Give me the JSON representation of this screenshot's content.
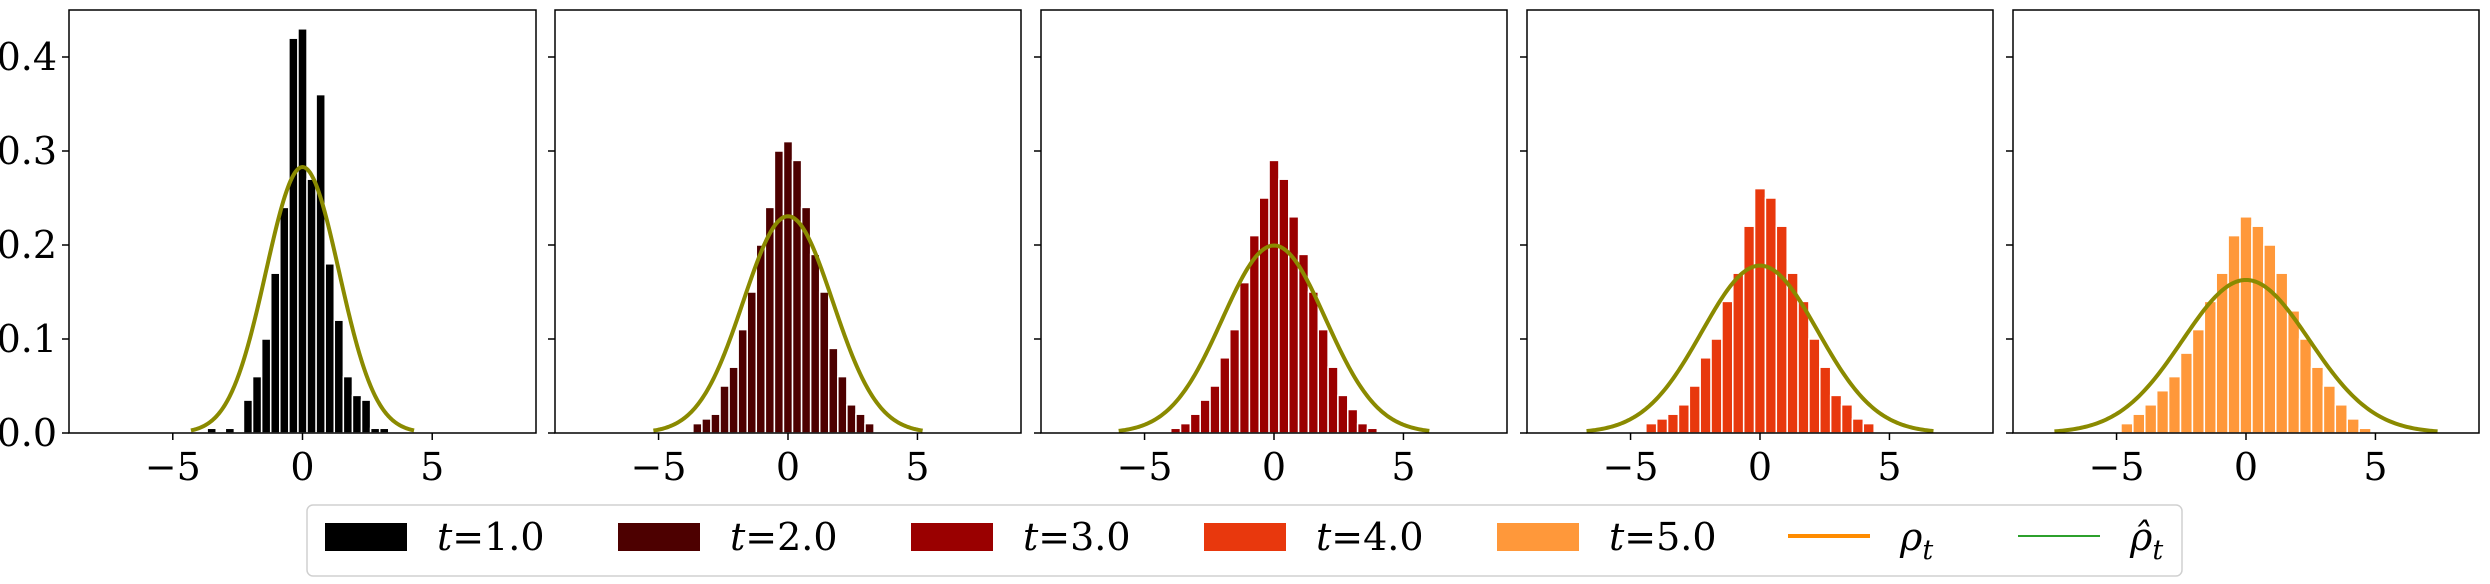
{
  "chart_data": [
    {
      "type": "bar",
      "series_name": "t=1.0",
      "bar_color": "#000000",
      "xlim": [
        -9,
        9
      ],
      "ylim": [
        0,
        0.45
      ],
      "xticks": [
        -5,
        0,
        5
      ],
      "yticks": [
        0.0,
        0.1,
        0.2,
        0.3,
        0.4
      ],
      "xtick_labels": [
        "−5",
        "0",
        "5"
      ],
      "ytick_labels": [
        "0.0",
        "0.1",
        "0.2",
        "0.3",
        "0.4"
      ],
      "bin_width": 0.35,
      "bins": [
        {
          "x": -3.5,
          "y": 0.005
        },
        {
          "x": -2.8,
          "y": 0.005
        },
        {
          "x": -2.1,
          "y": 0.035
        },
        {
          "x": -1.75,
          "y": 0.06
        },
        {
          "x": -1.4,
          "y": 0.1
        },
        {
          "x": -1.05,
          "y": 0.17
        },
        {
          "x": -0.7,
          "y": 0.24
        },
        {
          "x": -0.35,
          "y": 0.42
        },
        {
          "x": 0.0,
          "y": 0.43
        },
        {
          "x": 0.35,
          "y": 0.27
        },
        {
          "x": 0.7,
          "y": 0.36
        },
        {
          "x": 1.05,
          "y": 0.18
        },
        {
          "x": 1.4,
          "y": 0.12
        },
        {
          "x": 1.75,
          "y": 0.06
        },
        {
          "x": 2.1,
          "y": 0.04
        },
        {
          "x": 2.45,
          "y": 0.035
        },
        {
          "x": 2.8,
          "y": 0.005
        },
        {
          "x": 3.15,
          "y": 0.005
        }
      ],
      "density_sigma": 1.41,
      "density_domain": [
        -4.3,
        4.3
      ]
    },
    {
      "type": "bar",
      "series_name": "t=2.0",
      "bar_color": "#4d0000",
      "xlim": [
        -9,
        9
      ],
      "ylim": [
        0,
        0.45
      ],
      "xticks": [
        -5,
        0,
        5
      ],
      "yticks": [
        0.0,
        0.1,
        0.2,
        0.3,
        0.4
      ],
      "xtick_labels": [
        "−5",
        "0",
        "5"
      ],
      "ytick_labels": [
        "0.0",
        "0.1",
        "0.2",
        "0.3",
        "0.4"
      ],
      "bin_width": 0.35,
      "bins": [
        {
          "x": -3.5,
          "y": 0.01
        },
        {
          "x": -3.15,
          "y": 0.015
        },
        {
          "x": -2.8,
          "y": 0.02
        },
        {
          "x": -2.45,
          "y": 0.05
        },
        {
          "x": -2.1,
          "y": 0.07
        },
        {
          "x": -1.75,
          "y": 0.11
        },
        {
          "x": -1.4,
          "y": 0.15
        },
        {
          "x": -1.05,
          "y": 0.2
        },
        {
          "x": -0.7,
          "y": 0.24
        },
        {
          "x": -0.35,
          "y": 0.3
        },
        {
          "x": 0.0,
          "y": 0.31
        },
        {
          "x": 0.35,
          "y": 0.29
        },
        {
          "x": 0.7,
          "y": 0.24
        },
        {
          "x": 1.05,
          "y": 0.19
        },
        {
          "x": 1.4,
          "y": 0.15
        },
        {
          "x": 1.75,
          "y": 0.09
        },
        {
          "x": 2.1,
          "y": 0.06
        },
        {
          "x": 2.45,
          "y": 0.03
        },
        {
          "x": 2.8,
          "y": 0.02
        },
        {
          "x": 3.15,
          "y": 0.01
        }
      ],
      "density_sigma": 1.73,
      "density_domain": [
        -5.2,
        5.2
      ]
    },
    {
      "type": "bar",
      "series_name": "t=3.0",
      "bar_color": "#9a0000",
      "xlim": [
        -9,
        9
      ],
      "ylim": [
        0,
        0.45
      ],
      "xticks": [
        -5,
        0,
        5
      ],
      "yticks": [
        0.0,
        0.1,
        0.2,
        0.3,
        0.4
      ],
      "xtick_labels": [
        "−5",
        "0",
        "5"
      ],
      "ytick_labels": [
        "0.0",
        "0.1",
        "0.2",
        "0.3",
        "0.4"
      ],
      "bin_width": 0.38,
      "bins": [
        {
          "x": -3.8,
          "y": 0.005
        },
        {
          "x": -3.42,
          "y": 0.01
        },
        {
          "x": -3.04,
          "y": 0.02
        },
        {
          "x": -2.66,
          "y": 0.035
        },
        {
          "x": -2.28,
          "y": 0.05
        },
        {
          "x": -1.9,
          "y": 0.08
        },
        {
          "x": -1.52,
          "y": 0.11
        },
        {
          "x": -1.14,
          "y": 0.16
        },
        {
          "x": -0.76,
          "y": 0.21
        },
        {
          "x": -0.38,
          "y": 0.25
        },
        {
          "x": 0.0,
          "y": 0.29
        },
        {
          "x": 0.38,
          "y": 0.27
        },
        {
          "x": 0.76,
          "y": 0.23
        },
        {
          "x": 1.14,
          "y": 0.19
        },
        {
          "x": 1.52,
          "y": 0.15
        },
        {
          "x": 1.9,
          "y": 0.11
        },
        {
          "x": 2.28,
          "y": 0.07
        },
        {
          "x": 2.66,
          "y": 0.04
        },
        {
          "x": 3.04,
          "y": 0.025
        },
        {
          "x": 3.42,
          "y": 0.01
        },
        {
          "x": 3.8,
          "y": 0.005
        }
      ],
      "density_sigma": 2.0,
      "density_domain": [
        -6,
        6
      ]
    },
    {
      "type": "bar",
      "series_name": "t=4.0",
      "bar_color": "#e8380d",
      "xlim": [
        -9,
        9
      ],
      "ylim": [
        0,
        0.45
      ],
      "xticks": [
        -5,
        0,
        5
      ],
      "yticks": [
        0.0,
        0.1,
        0.2,
        0.3,
        0.4
      ],
      "xtick_labels": [
        "−5",
        "0",
        "5"
      ],
      "ytick_labels": [
        "0.0",
        "0.1",
        "0.2",
        "0.3",
        "0.4"
      ],
      "bin_width": 0.42,
      "bins": [
        {
          "x": -4.2,
          "y": 0.01
        },
        {
          "x": -3.78,
          "y": 0.015
        },
        {
          "x": -3.36,
          "y": 0.02
        },
        {
          "x": -2.94,
          "y": 0.03
        },
        {
          "x": -2.52,
          "y": 0.05
        },
        {
          "x": -2.1,
          "y": 0.08
        },
        {
          "x": -1.68,
          "y": 0.1
        },
        {
          "x": -1.26,
          "y": 0.14
        },
        {
          "x": -0.84,
          "y": 0.17
        },
        {
          "x": -0.42,
          "y": 0.22
        },
        {
          "x": 0.0,
          "y": 0.26
        },
        {
          "x": 0.42,
          "y": 0.25
        },
        {
          "x": 0.84,
          "y": 0.22
        },
        {
          "x": 1.26,
          "y": 0.17
        },
        {
          "x": 1.68,
          "y": 0.14
        },
        {
          "x": 2.1,
          "y": 0.1
        },
        {
          "x": 2.52,
          "y": 0.07
        },
        {
          "x": 2.94,
          "y": 0.04
        },
        {
          "x": 3.36,
          "y": 0.03
        },
        {
          "x": 3.78,
          "y": 0.015
        },
        {
          "x": 4.2,
          "y": 0.01
        }
      ],
      "density_sigma": 2.24,
      "density_domain": [
        -6.7,
        6.7
      ]
    },
    {
      "type": "bar",
      "series_name": "t=5.0",
      "bar_color": "#ff983a",
      "xlim": [
        -9,
        9
      ],
      "ylim": [
        0,
        0.45
      ],
      "xticks": [
        -5,
        0,
        5
      ],
      "yticks": [
        0.0,
        0.1,
        0.2,
        0.3,
        0.4
      ],
      "xtick_labels": [
        "−5",
        "0",
        "5"
      ],
      "ytick_labels": [
        "0.0",
        "0.1",
        "0.2",
        "0.3",
        "0.4"
      ],
      "bin_width": 0.46,
      "bins": [
        {
          "x": -4.6,
          "y": 0.01
        },
        {
          "x": -4.14,
          "y": 0.02
        },
        {
          "x": -3.68,
          "y": 0.03
        },
        {
          "x": -3.22,
          "y": 0.045
        },
        {
          "x": -2.76,
          "y": 0.06
        },
        {
          "x": -2.3,
          "y": 0.085
        },
        {
          "x": -1.84,
          "y": 0.11
        },
        {
          "x": -1.38,
          "y": 0.14
        },
        {
          "x": -0.92,
          "y": 0.17
        },
        {
          "x": -0.46,
          "y": 0.21
        },
        {
          "x": 0.0,
          "y": 0.23
        },
        {
          "x": 0.46,
          "y": 0.22
        },
        {
          "x": 0.92,
          "y": 0.2
        },
        {
          "x": 1.38,
          "y": 0.17
        },
        {
          "x": 1.84,
          "y": 0.13
        },
        {
          "x": 2.3,
          "y": 0.1
        },
        {
          "x": 2.76,
          "y": 0.07
        },
        {
          "x": 3.22,
          "y": 0.05
        },
        {
          "x": 3.68,
          "y": 0.03
        },
        {
          "x": 4.14,
          "y": 0.015
        },
        {
          "x": 4.6,
          "y": 0.005
        }
      ],
      "density_sigma": 2.45,
      "density_domain": [
        -7.4,
        7.4
      ]
    }
  ],
  "legend": {
    "placement": "bottom-center",
    "entries": [
      {
        "kind": "patch",
        "color": "#000000",
        "label_var": "t",
        "label_rest": "=1.0"
      },
      {
        "kind": "patch",
        "color": "#4d0000",
        "label_var": "t",
        "label_rest": "=2.0"
      },
      {
        "kind": "patch",
        "color": "#9a0000",
        "label_var": "t",
        "label_rest": "=3.0"
      },
      {
        "kind": "patch",
        "color": "#e8380d",
        "label_var": "t",
        "label_rest": "=4.0"
      },
      {
        "kind": "patch",
        "color": "#ff983a",
        "label_var": "t",
        "label_rest": "=5.0"
      },
      {
        "kind": "line",
        "color": "#ff8c00",
        "label_var": "ρ",
        "label_sub": "t"
      },
      {
        "kind": "line",
        "color": "#2ca02c",
        "label_var": "ρ̂",
        "label_sub": "t"
      }
    ]
  },
  "colors": {
    "rho_true": "#ff8c00",
    "rho_hat": "#2ca02c",
    "overlay_curve": "#8a8a00",
    "bar_edge": "#ffffff"
  }
}
